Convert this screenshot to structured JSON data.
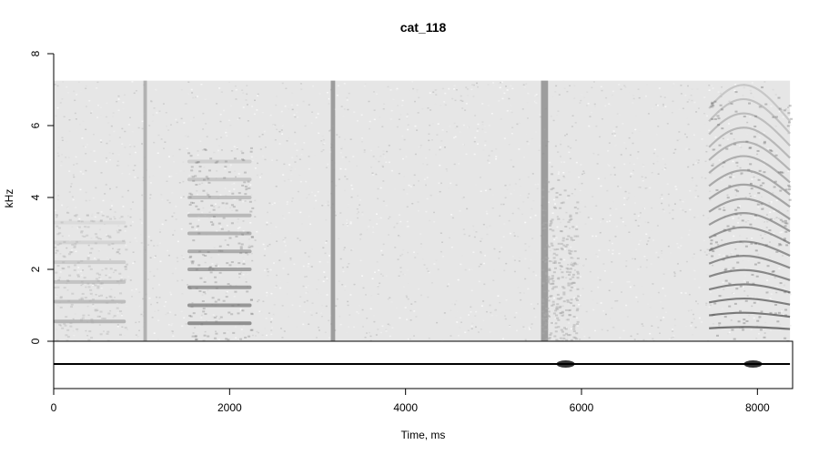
{
  "chart_data": {
    "type": "spectrogram",
    "title": "cat_118",
    "xlabel": "Time, ms",
    "ylabel": "kHz",
    "xlim": [
      0,
      8400
    ],
    "ylim": [
      0,
      8
    ],
    "xticks": [
      0,
      2000,
      4000,
      6000,
      8000
    ],
    "yticks": [
      0,
      2,
      4,
      6,
      8
    ],
    "content_max_khz": 7.25,
    "duration_ms": 8370,
    "colormap": "grayscale (white = low energy, black = high energy)",
    "events": [
      {
        "start_ms": 0,
        "end_ms": 820,
        "kind": "harmonic",
        "f0_khz": 0.55,
        "max_khz": 3.6,
        "intensity": 0.45
      },
      {
        "start_ms": 1020,
        "end_ms": 1060,
        "kind": "transient",
        "max_khz": 7.25,
        "intensity": 0.5
      },
      {
        "start_ms": 1520,
        "end_ms": 2250,
        "kind": "harmonic",
        "f0_khz": 0.5,
        "max_khz": 5.4,
        "intensity": 0.7
      },
      {
        "start_ms": 3150,
        "end_ms": 3200,
        "kind": "transient",
        "max_khz": 7.25,
        "intensity": 0.65
      },
      {
        "start_ms": 5540,
        "end_ms": 5620,
        "kind": "transient",
        "max_khz": 7.25,
        "intensity": 0.65
      },
      {
        "start_ms": 5540,
        "end_ms": 5950,
        "kind": "noise",
        "max_khz": 5.0,
        "intensity": 0.45
      },
      {
        "start_ms": 7450,
        "end_ms": 8370,
        "kind": "harmonic-sweep",
        "f0_khz": 0.4,
        "max_khz": 7.25,
        "intensity": 0.85
      }
    ],
    "oscillogram": {
      "peaks_ms": [
        5820,
        7950
      ],
      "yticks_visible": false
    },
    "colors": {
      "background": "#ffffff",
      "axis": "#000000",
      "waveform": "#000000"
    }
  }
}
